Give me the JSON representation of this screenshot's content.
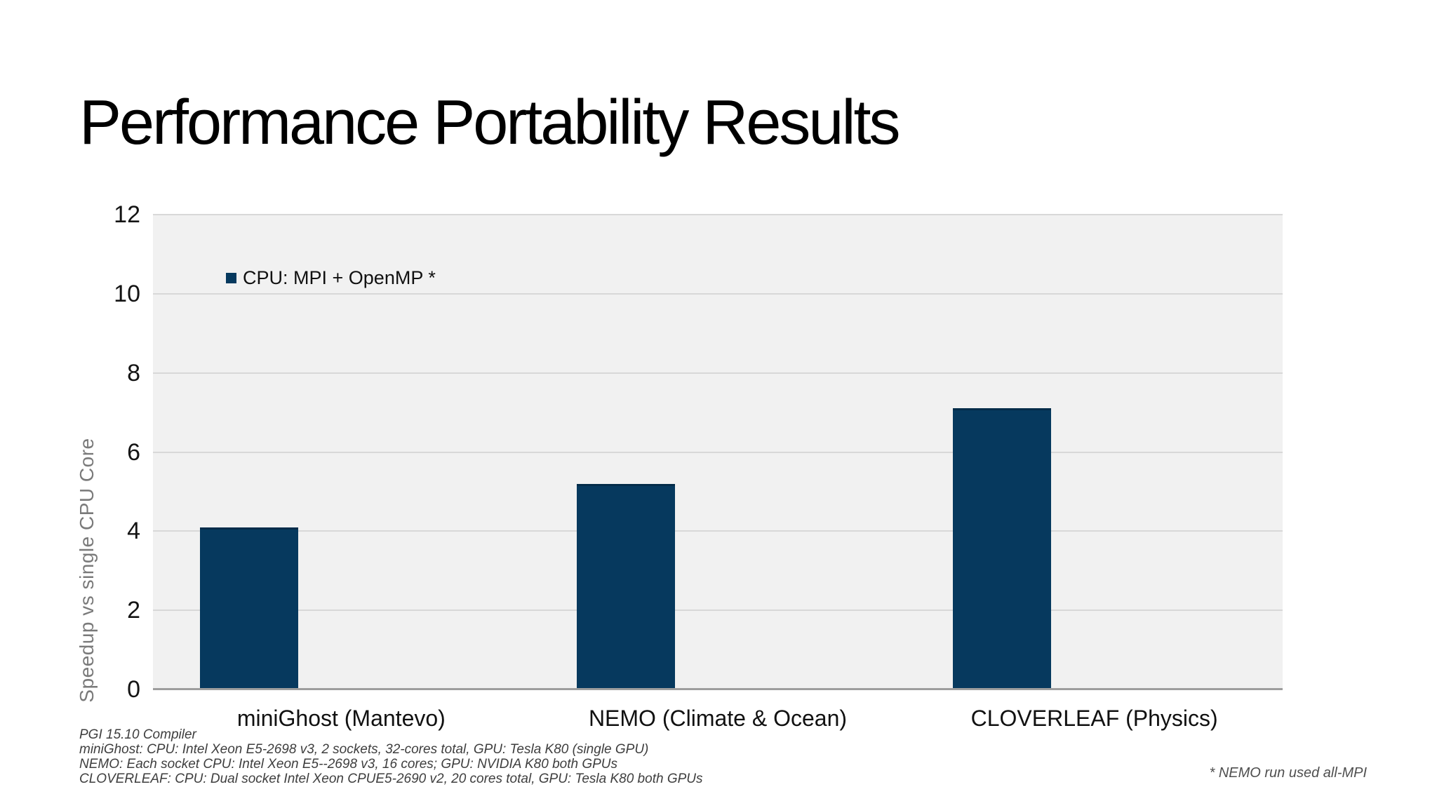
{
  "slide": {
    "title": "Performance Portability Results"
  },
  "chart_data": {
    "type": "bar",
    "title": "",
    "categories": [
      "miniGhost (Mantevo)",
      "NEMO (Climate & Ocean)",
      "CLOVERLEAF (Physics)"
    ],
    "series": [
      {
        "name": "CPU: MPI + OpenMP *",
        "values": [
          4.1,
          5.2,
          7.1
        ],
        "color": "#06395E"
      }
    ],
    "xlabel": "",
    "ylabel": "Speedup vs single CPU Core",
    "ylim": [
      0,
      12
    ],
    "yticks": [
      0,
      2,
      4,
      6,
      8,
      10,
      12
    ],
    "grid": true,
    "legend_position": "inside-top-left",
    "plot_background": "#F1F1F1",
    "gridline_color": "#D8D8D8",
    "axis_line_color": "#9E9E9E",
    "tick_label_color": "#141414",
    "ylabel_color": "#7A7A7A"
  },
  "footnotes": {
    "left_lines": [
      "PGI 15.10 Compiler",
      "miniGhost: CPU: Intel Xeon E5-2698 v3, 2 sockets, 32-cores total, GPU: Tesla K80 (single GPU)",
      "NEMO: Each socket CPU: Intel Xeon E5--2698 v3, 16 cores; GPU: NVIDIA K80 both GPUs",
      "CLOVERLEAF: CPU: Dual socket Intel Xeon CPUE5-2690 v2, 20 cores total, GPU: Tesla K80 both GPUs"
    ],
    "right_note": "* NEMO run used all-MPI"
  }
}
